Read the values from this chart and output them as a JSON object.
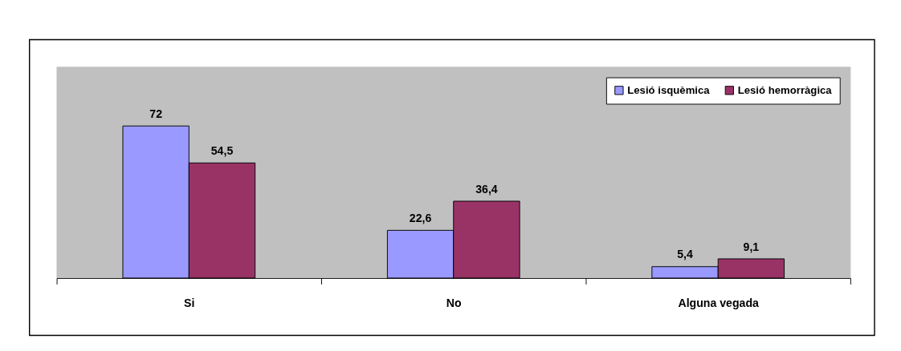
{
  "chart_data": {
    "type": "bar",
    "categories": [
      "Si",
      "No",
      "Alguna vegada"
    ],
    "ylim": [
      0,
      100
    ],
    "legend": "top right",
    "series": [
      {
        "name": "Lesió isquèmica",
        "color": "#9999ff",
        "values": [
          72,
          22.6,
          5.4
        ],
        "value_labels": [
          "72",
          "22,6",
          "5,4"
        ]
      },
      {
        "name": "Lesió hemorràgica",
        "color": "#993366",
        "values": [
          54.5,
          36.4,
          9.1
        ],
        "value_labels": [
          "54,5",
          "36,4",
          "9,1"
        ]
      }
    ]
  }
}
